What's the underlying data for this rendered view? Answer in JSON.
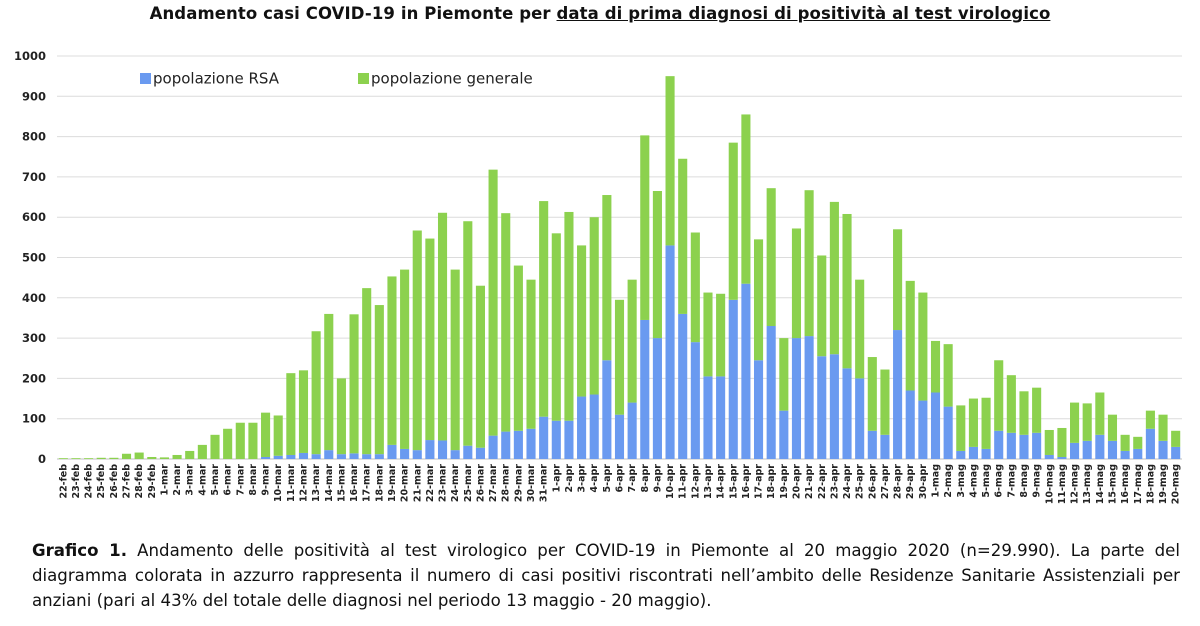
{
  "header": {
    "title_plain": "Andamento casi COVID-19 in Piemonte per ",
    "title_underlined": "data di prima diagnosi di positività al test virologico"
  },
  "caption": {
    "label": "Grafico 1.",
    "text": " Andamento delle positività al test virologico per COVID-19 in Piemonte al 20 maggio 2020 (n=29.990). La parte del diagramma colorata in azzurro rappresenta il numero di casi positivi riscontrati nell’ambito delle Residenze Sanitarie Assistenziali per anziani (pari al 43% del totale delle diagnosi nel periodo 13 maggio - 20 maggio)."
  },
  "colors": {
    "rsa": "#6a9af0",
    "generale": "#8cd14e",
    "grid": "#dcdcdc"
  },
  "chart_data": {
    "type": "bar",
    "stacked": true,
    "ylim": [
      0,
      1000
    ],
    "yticks": [
      0,
      100,
      200,
      300,
      400,
      500,
      600,
      700,
      800,
      900,
      1000
    ],
    "grid": true,
    "legend_position": "top-left",
    "categories": [
      "22-feb",
      "23-feb",
      "24-feb",
      "25-feb",
      "26-feb",
      "27-feb",
      "28-feb",
      "29-feb",
      "1-mar",
      "2-mar",
      "3-mar",
      "4-mar",
      "5-mar",
      "6-mar",
      "7-mar",
      "8-mar",
      "9-mar",
      "10-mar",
      "11-mar",
      "12-mar",
      "13-mar",
      "14-mar",
      "15-mar",
      "16-mar",
      "17-mar",
      "18-mar",
      "19-mar",
      "20-mar",
      "21-mar",
      "22-mar",
      "23-mar",
      "24-mar",
      "25-mar",
      "26-mar",
      "27-mar",
      "28-mar",
      "29-mar",
      "30-mar",
      "31-mar",
      "1-apr",
      "2-apr",
      "3-apr",
      "4-apr",
      "5-apr",
      "6-apr",
      "7-apr",
      "8-apr",
      "9-apr",
      "10-apr",
      "11-apr",
      "12-apr",
      "13-apr",
      "14-apr",
      "15-apr",
      "16-apr",
      "17-apr",
      "18-apr",
      "19-apr",
      "20-apr",
      "21-apr",
      "22-apr",
      "23-apr",
      "24-apr",
      "25-apr",
      "26-apr",
      "27-apr",
      "28-apr",
      "29-apr",
      "30-apr",
      "1-mag",
      "2-mag",
      "3-mag",
      "4-mag",
      "5-mag",
      "6-mag",
      "7-mag",
      "8-mag",
      "9-mag",
      "10-mag",
      "11-mag",
      "12-mag",
      "13-mag",
      "14-mag",
      "15-mag",
      "16-mag",
      "17-mag",
      "18-mag",
      "19-mag",
      "20-mag"
    ],
    "series": [
      {
        "name": "popolazione RSA",
        "values": [
          0,
          0,
          0,
          0,
          0,
          0,
          0,
          0,
          0,
          0,
          0,
          0,
          0,
          0,
          0,
          0,
          5,
          8,
          10,
          15,
          12,
          22,
          12,
          14,
          12,
          12,
          35,
          25,
          22,
          47,
          46,
          22,
          33,
          28,
          58,
          68,
          70,
          75,
          105,
          95,
          95,
          155,
          160,
          245,
          110,
          140,
          345,
          300,
          530,
          360,
          290,
          205,
          205,
          395,
          435,
          245,
          330,
          120,
          300,
          305,
          255,
          260,
          225,
          200,
          70,
          60,
          320,
          170,
          145,
          165,
          130,
          20,
          30,
          25,
          70,
          65,
          60,
          65,
          10,
          5,
          40,
          45,
          60,
          45,
          20,
          25,
          75,
          45,
          30
        ]
      },
      {
        "name": "popolazione generale",
        "values": [
          2,
          2,
          2,
          3,
          3,
          13,
          16,
          5,
          4,
          10,
          20,
          35,
          60,
          75,
          90,
          90,
          110,
          100,
          203,
          205,
          305,
          338,
          188,
          345,
          412,
          370,
          418,
          445,
          545,
          500,
          565,
          448,
          557,
          402,
          660,
          542,
          410,
          370,
          535,
          465,
          518,
          375,
          440,
          410,
          285,
          305,
          458,
          365,
          420,
          385,
          272,
          208,
          205,
          390,
          420,
          300,
          342,
          180,
          272,
          362,
          250,
          378,
          383,
          245,
          183,
          162,
          250,
          272,
          268,
          128,
          155,
          113,
          120,
          127,
          175,
          143,
          108,
          112,
          62,
          72,
          100,
          93,
          105,
          65,
          40,
          30,
          45,
          65,
          40
        ]
      }
    ]
  }
}
